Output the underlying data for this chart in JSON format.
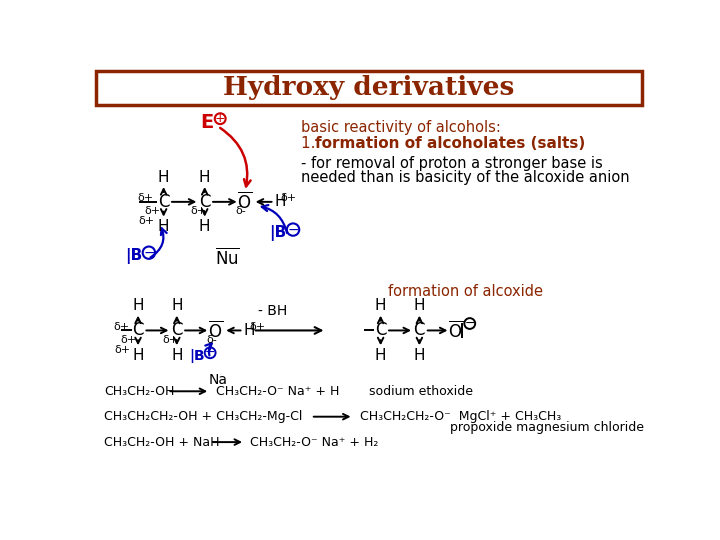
{
  "title": "Hydroxy derivatives",
  "title_color": "#8B2500",
  "title_border_color": "#8B2500",
  "bg_color": "#ffffff",
  "text_color": "#8B2500",
  "black": "#000000",
  "blue": "#0000bb",
  "red": "#cc0000",
  "subtitle": "basic reactivity of alcohols:",
  "point1_plain": "1. ",
  "point1_bold": "formation of alcoholates (salts)",
  "desc_line1": "- for removal of proton a stronger base is",
  "desc_line2": "needed than is basicity of the alcoxide anion",
  "formation_label": "formation of alcoxide",
  "sodium_label": "sodium ethoxide",
  "propoxide_label": "propoxide magnesium chloride",
  "na_label": "Na"
}
